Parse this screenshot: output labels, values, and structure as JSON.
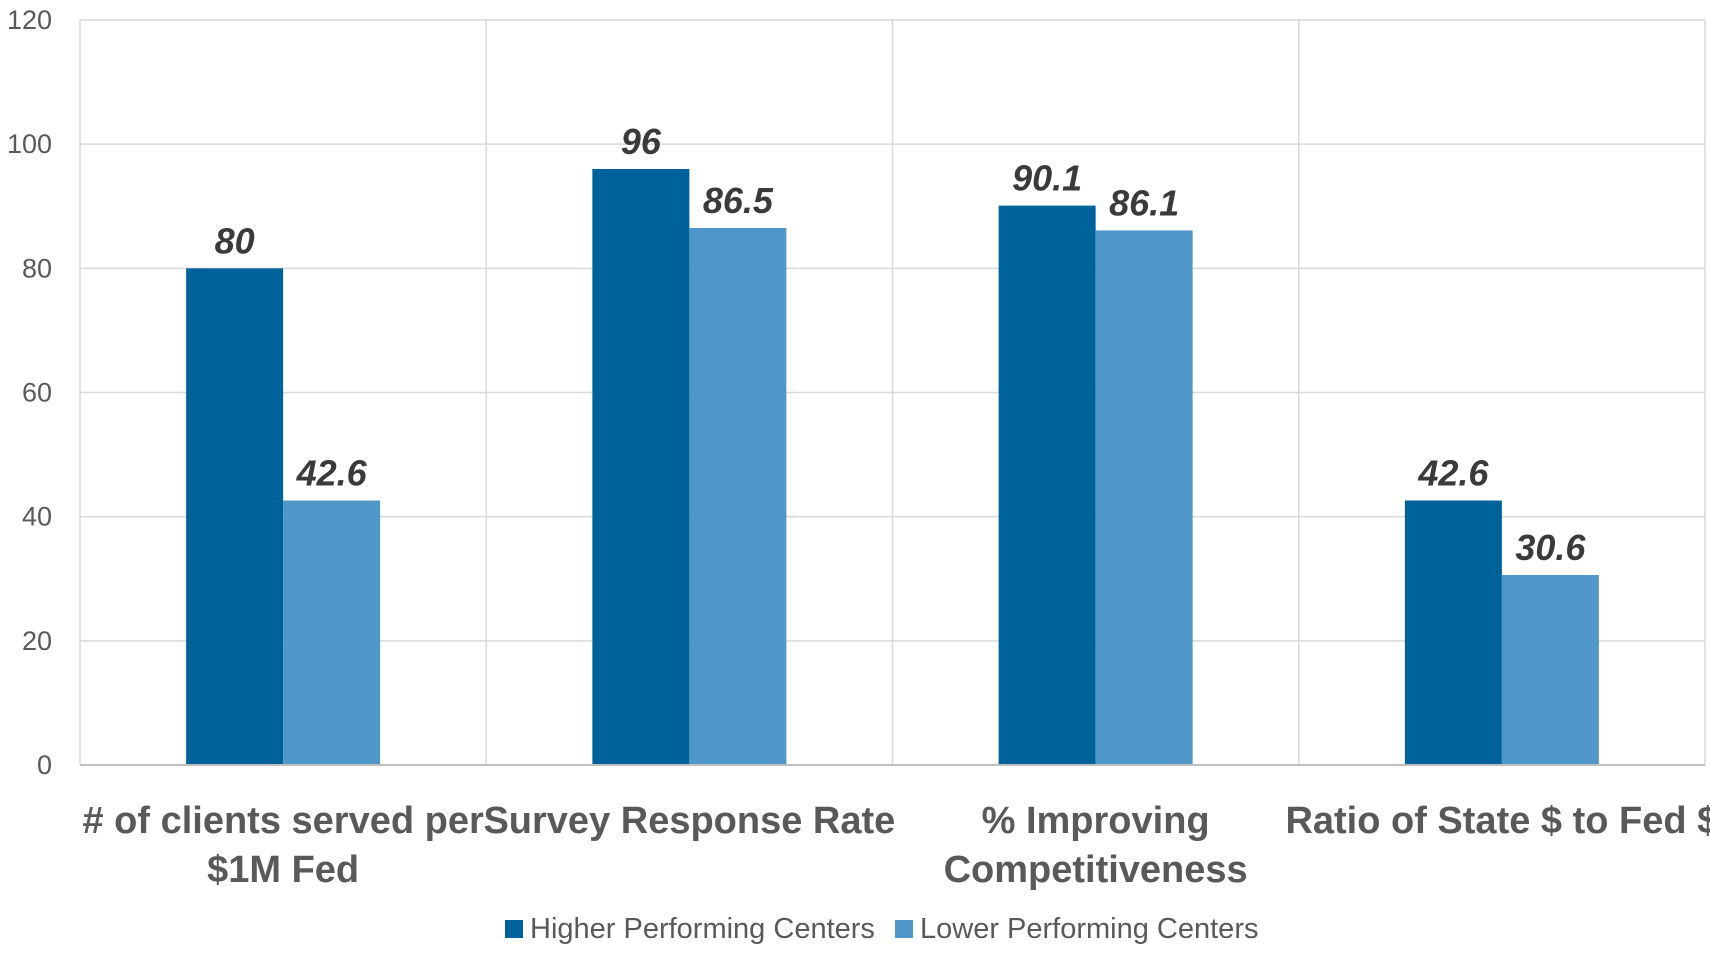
{
  "chart_data": {
    "type": "bar",
    "categories": [
      [
        "# of clients served per",
        "$1M Fed"
      ],
      [
        "Survey Response Rate"
      ],
      [
        "% Improving",
        "Competitiveness"
      ],
      [
        "Ratio of State $ to Fed $"
      ]
    ],
    "series": [
      {
        "name": "Higher Performing Centers",
        "values": [
          80,
          96,
          90.1,
          42.6
        ],
        "labels": [
          "80",
          "96",
          "90.1",
          "42.6"
        ],
        "color": "#00629b"
      },
      {
        "name": "Lower Performing Centers",
        "values": [
          42.6,
          86.5,
          86.1,
          30.6
        ],
        "labels": [
          "42.6",
          "86.5",
          "86.1",
          "30.6"
        ],
        "color": "#4f96c9"
      }
    ],
    "yticks": [
      0,
      20,
      40,
      60,
      80,
      100,
      120
    ],
    "ylim": [
      0,
      120
    ],
    "grid": true,
    "legend_position": "bottom",
    "title": "",
    "xlabel": "",
    "ylabel": ""
  }
}
